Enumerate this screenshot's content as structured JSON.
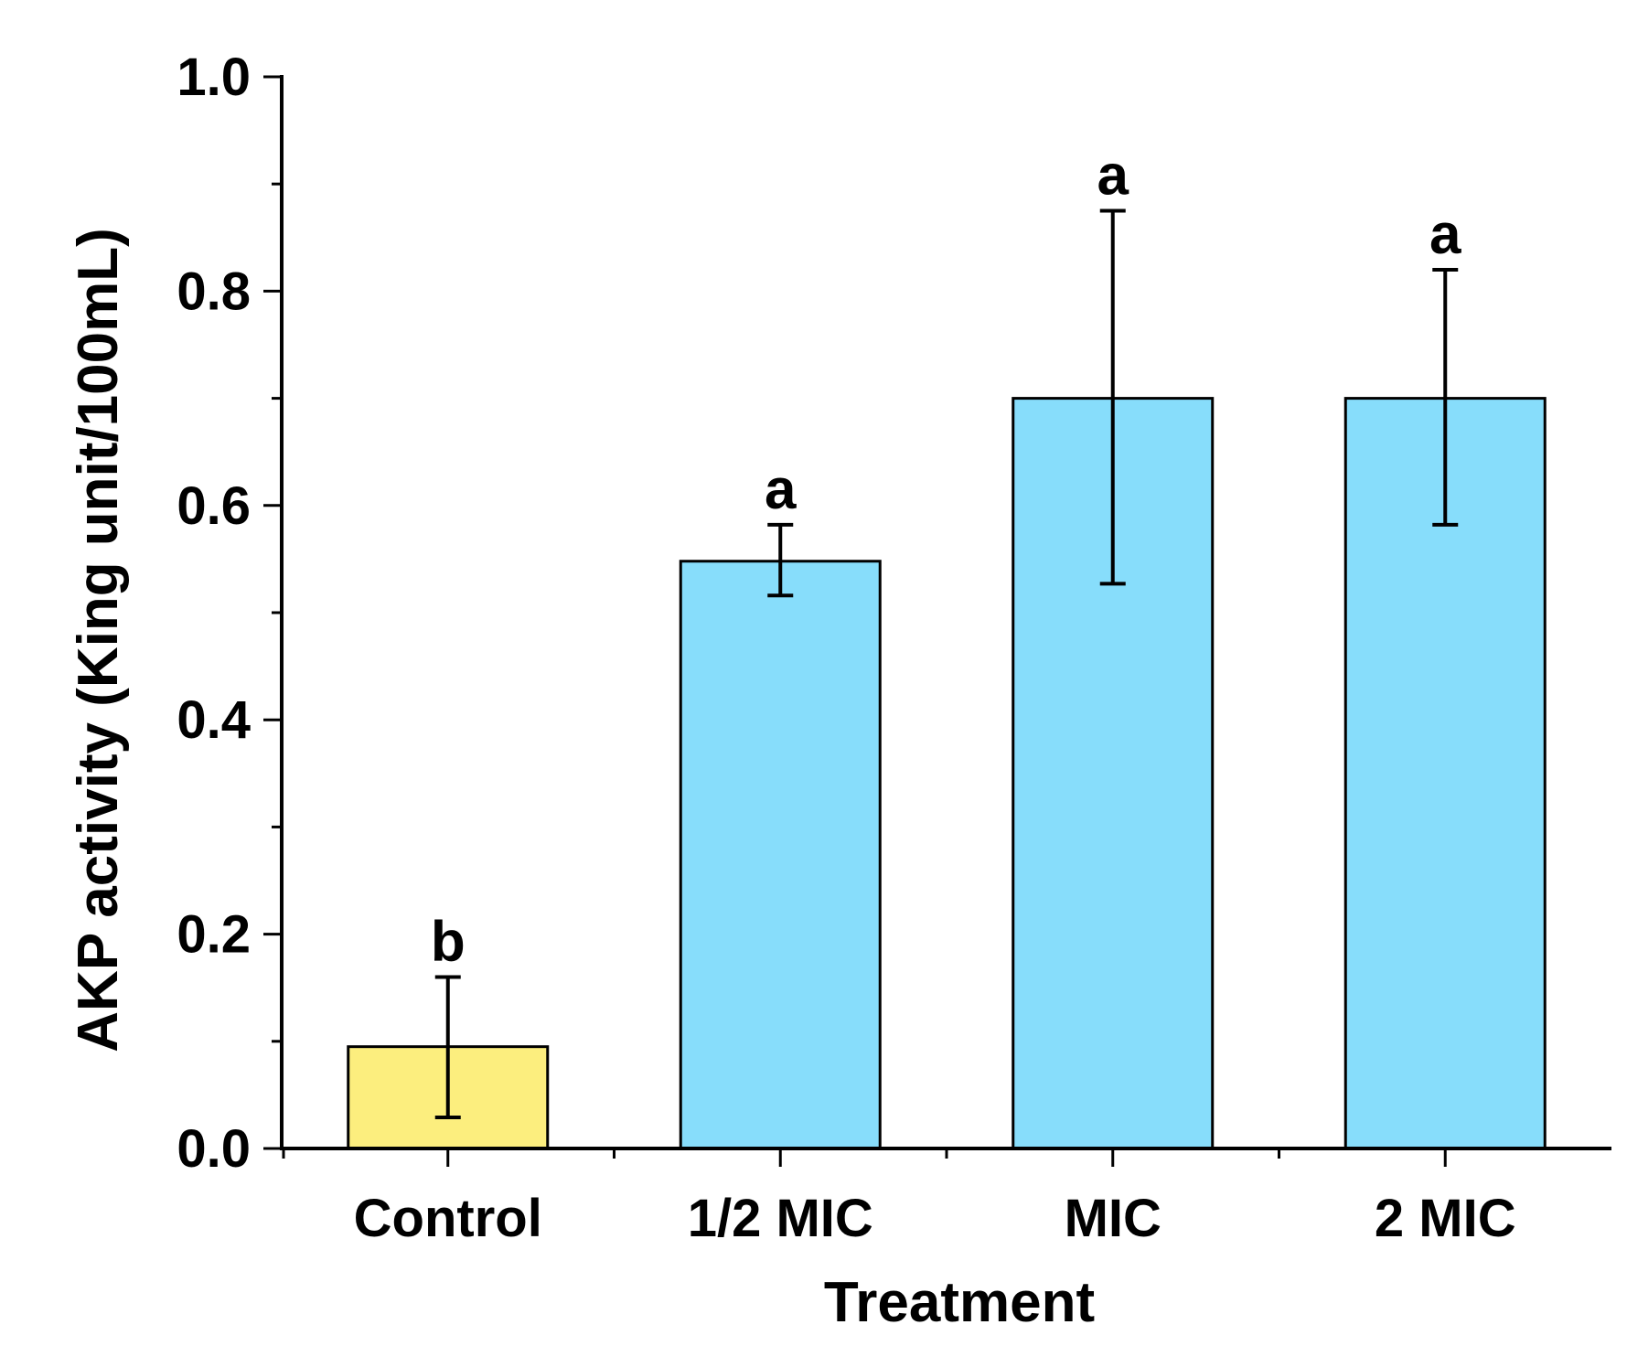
{
  "chart_data": {
    "type": "bar",
    "title": "",
    "xlabel": "Treatment",
    "ylabel": "AKP activity (King unit/100mL)",
    "ylim": [
      0.0,
      1.0
    ],
    "yticks": [
      0.0,
      0.2,
      0.4,
      0.6,
      0.8,
      1.0
    ],
    "ytick_labels": [
      "0.0",
      "0.2",
      "0.4",
      "0.6",
      "0.8",
      "1.0"
    ],
    "minor_ytick_step": 0.1,
    "grid": false,
    "categories": [
      "Control",
      "1/2 MIC",
      "MIC",
      "2 MIC"
    ],
    "values": [
      0.095,
      0.548,
      0.7,
      0.7
    ],
    "error_upper": [
      0.16,
      0.582,
      0.875,
      0.82
    ],
    "error_lower": [
      0.029,
      0.516,
      0.527,
      0.582
    ],
    "significance": [
      "b",
      "a",
      "a",
      "a"
    ],
    "bar_colors": [
      "#FCEE7E",
      "#87DDFB",
      "#87DDFB",
      "#87DDFB"
    ]
  }
}
